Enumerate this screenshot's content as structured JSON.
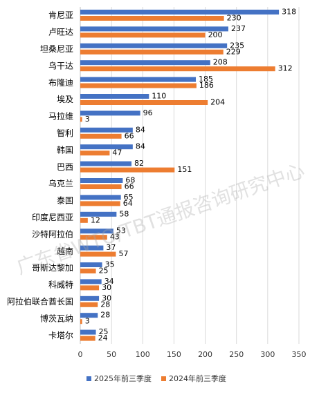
{
  "chart_data": {
    "type": "bar",
    "orientation": "horizontal",
    "categories": [
      "肯尼亚",
      "卢旺达",
      "坦桑尼亚",
      "乌干达",
      "布隆迪",
      "埃及",
      "马拉维",
      "智利",
      "韩国",
      "巴西",
      "乌克兰",
      "泰国",
      "印度尼西亚",
      "沙特阿拉伯",
      "越南",
      "哥斯达黎加",
      "科威特",
      "阿拉伯联合酋长国",
      "博茨瓦纳",
      "卡塔尔"
    ],
    "series": [
      {
        "name": "2025年前三季度",
        "color": "#4472C4",
        "values": [
          318,
          237,
          235,
          208,
          185,
          110,
          96,
          84,
          84,
          82,
          68,
          65,
          58,
          53,
          37,
          35,
          34,
          30,
          28,
          25
        ]
      },
      {
        "name": "2024年前三季度",
        "color": "#ED7D31",
        "values": [
          230,
          200,
          229,
          312,
          186,
          204,
          3,
          66,
          47,
          151,
          66,
          64,
          12,
          43,
          57,
          25,
          30,
          28,
          3,
          24
        ]
      }
    ],
    "xlim": [
      0,
      350
    ],
    "xticks": [
      0,
      50,
      100,
      150,
      200,
      250,
      300,
      350
    ],
    "grid": true,
    "legend_position": "bottom",
    "data_labels": true
  },
  "watermark": "广东省WTO/TBT通报咨询研究中心"
}
